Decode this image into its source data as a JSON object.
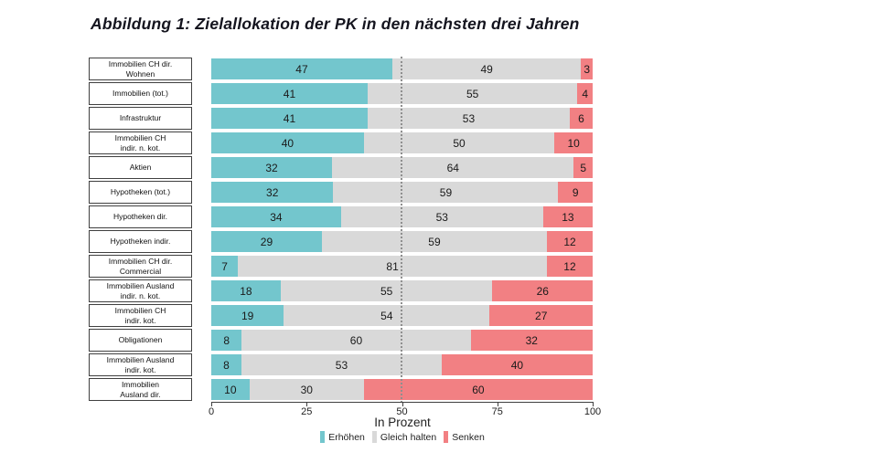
{
  "title": "Abbildung 1: Zielallokation der PK in den nächsten drei Jahren",
  "chart_data": {
    "type": "bar",
    "variant": "horizontal-stacked",
    "title": "Abbildung 1: Zielallokation der PK in den nächsten drei Jahren",
    "xlabel": "In Prozent",
    "xlim": [
      0,
      100
    ],
    "x_ticks": [
      0,
      25,
      50,
      75,
      100
    ],
    "reference_line_x": 50,
    "grid": false,
    "legend_position": "bottom",
    "categories": [
      "Immobilien CH dir.\nWohnen",
      "Immobilien (tot.)",
      "Infrastruktur",
      "Immobilien CH\nindir. n. kot.",
      "Aktien",
      "Hypotheken (tot.)",
      "Hypotheken dir.",
      "Hypotheken indir.",
      "Immobilien CH dir.\nCommercial",
      "Immobilien Ausland\nindir. n. kot.",
      "Immobilien CH\nindir. kot.",
      "Obligationen",
      "Immobilien Ausland\nindir. kot.",
      "Immobilien\nAusland dir."
    ],
    "series": [
      {
        "name": "Erhöhen",
        "color": "#73c6cd",
        "values": [
          47,
          41,
          41,
          40,
          32,
          32,
          34,
          29,
          7,
          18,
          19,
          8,
          8,
          10
        ]
      },
      {
        "name": "Gleich halten",
        "color": "#d9d9d9",
        "values": [
          49,
          55,
          53,
          50,
          64,
          59,
          53,
          59,
          81,
          55,
          54,
          60,
          53,
          30
        ]
      },
      {
        "name": "Senken",
        "color": "#f28083",
        "values": [
          3,
          4,
          6,
          10,
          5,
          9,
          13,
          12,
          12,
          26,
          27,
          32,
          40,
          60
        ]
      }
    ]
  },
  "colors": {
    "increase": "#73c6cd",
    "hold": "#d9d9d9",
    "decrease": "#f28083",
    "axis": "#404040",
    "reference_line": "#8f8f8f",
    "title_text": "#14141e"
  }
}
